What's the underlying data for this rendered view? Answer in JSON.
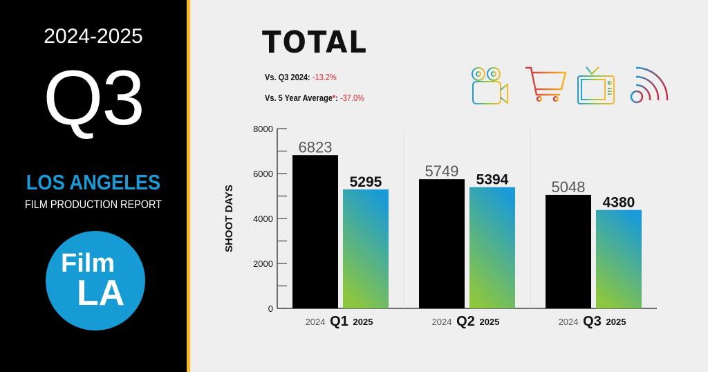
{
  "sidebar": {
    "years": "2024-2025",
    "quarter": "Q3",
    "city": "LOS ANGELES",
    "report": "FILM PRODUCTION REPORT",
    "logo_text": [
      "Film",
      "LA"
    ]
  },
  "header": {
    "title": "TOTAL",
    "comparisons": [
      {
        "label": "Vs. Q3 2024:",
        "asterisk": "",
        "value": "-13.2%"
      },
      {
        "label": "Vs. 5 Year Average",
        "asterisk": "*",
        "value": "-37.0%"
      }
    ]
  },
  "icons": [
    "film-camera-icon",
    "shopping-cart-icon",
    "television-icon",
    "wireless-signal-icon"
  ],
  "colors": {
    "accent_blue": "#169bd5",
    "stripe": "#fbb827",
    "negative": "#e0242b",
    "bar_2024": "#000000",
    "bar_2025_top": "#1a9bd7",
    "bar_2025_bottom": "#8dc63f"
  },
  "chart_data": {
    "type": "bar",
    "ylabel": "SHOOT DAYS",
    "ylim": [
      0,
      8000
    ],
    "yticks": [
      0,
      2000,
      4000,
      6000,
      8000
    ],
    "categories": [
      "Q1",
      "Q2",
      "Q3"
    ],
    "series": [
      {
        "name": "2024",
        "values": [
          6823,
          5749,
          5048
        ]
      },
      {
        "name": "2025",
        "values": [
          5295,
          5394,
          4380
        ]
      }
    ]
  }
}
